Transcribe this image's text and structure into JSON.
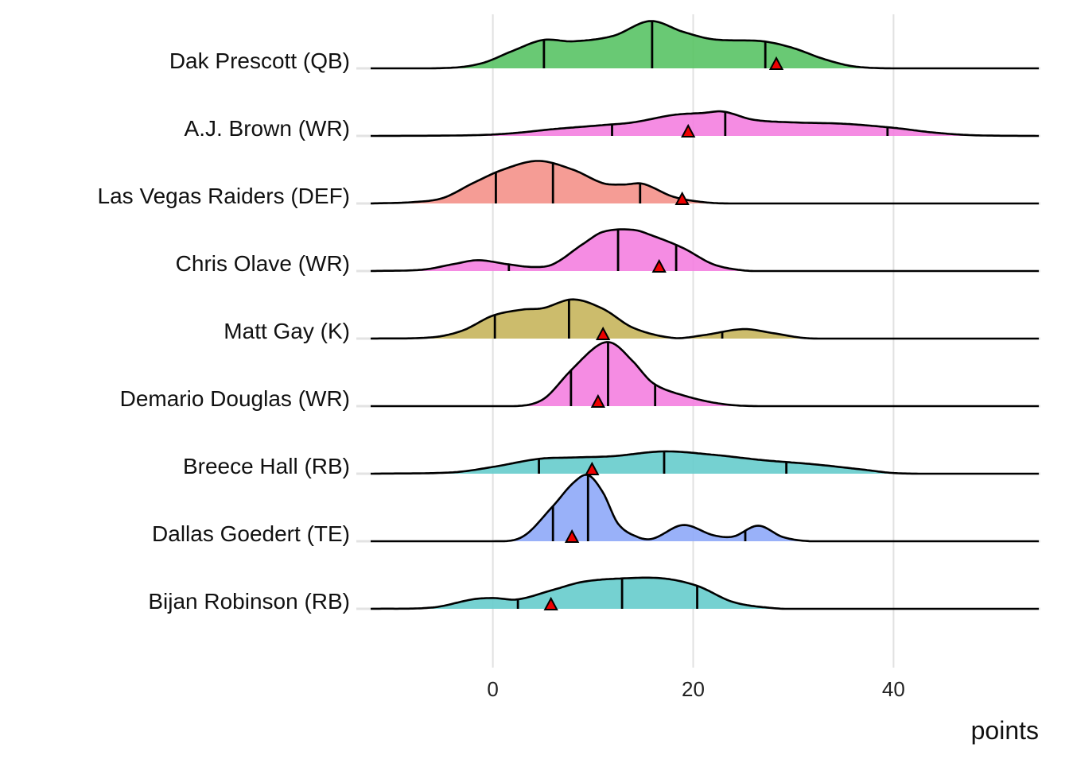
{
  "chart_data": {
    "type": "ridgeline",
    "title": "",
    "xlabel": "points",
    "ylabel": "",
    "xlim": [
      -12.2,
      54.5
    ],
    "x_ticks": [
      0,
      20,
      40
    ],
    "x_tick_labels": [
      "0",
      "20",
      "40"
    ],
    "grid": "vertical major lines",
    "legend": "none",
    "marker_shape": "triangle",
    "marker_color": "#ee0000",
    "quantile_lines": [
      0.25,
      0.5,
      0.75
    ],
    "series": [
      {
        "name": "Dak Prescott (QB)",
        "color": "#59c365",
        "quantiles": [
          5.1,
          15.9,
          27.2
        ],
        "marker": 28.3,
        "density": [
          [
            -12.2,
            0
          ],
          [
            -4,
            0.01
          ],
          [
            -1,
            0.08
          ],
          [
            2,
            0.26
          ],
          [
            5,
            0.42
          ],
          [
            8,
            0.4
          ],
          [
            12,
            0.48
          ],
          [
            15.7,
            0.7
          ],
          [
            19,
            0.54
          ],
          [
            22,
            0.43
          ],
          [
            27,
            0.4
          ],
          [
            30,
            0.3
          ],
          [
            33,
            0.14
          ],
          [
            36,
            0.03
          ],
          [
            40,
            0
          ],
          [
            54.5,
            0
          ]
        ]
      },
      {
        "name": "A.J. Brown (WR)",
        "color": "#f47fe0",
        "quantiles": [
          11.9,
          23.2,
          39.4
        ],
        "marker": 19.5,
        "density": [
          [
            -12.2,
            0
          ],
          [
            -2,
            0.01
          ],
          [
            2,
            0.04
          ],
          [
            6,
            0.1
          ],
          [
            11,
            0.16
          ],
          [
            14,
            0.2
          ],
          [
            18,
            0.31
          ],
          [
            21,
            0.34
          ],
          [
            23,
            0.36
          ],
          [
            26,
            0.24
          ],
          [
            30,
            0.2
          ],
          [
            35,
            0.18
          ],
          [
            40,
            0.12
          ],
          [
            44,
            0.05
          ],
          [
            48,
            0.01
          ],
          [
            54.5,
            0
          ]
        ]
      },
      {
        "name": "Las Vegas Raiders (DEF)",
        "color": "#f4918a",
        "quantiles": [
          0.3,
          6.0,
          14.7
        ],
        "marker": 18.9,
        "density": [
          [
            -12.2,
            0
          ],
          [
            -8,
            0.02
          ],
          [
            -5,
            0.08
          ],
          [
            -2,
            0.3
          ],
          [
            1,
            0.5
          ],
          [
            4.5,
            0.63
          ],
          [
            8,
            0.5
          ],
          [
            11,
            0.3
          ],
          [
            13,
            0.28
          ],
          [
            15,
            0.29
          ],
          [
            18,
            0.1
          ],
          [
            21,
            0.02
          ],
          [
            24,
            0
          ],
          [
            54.5,
            0
          ]
        ]
      },
      {
        "name": "Chris Olave (WR)",
        "color": "#f47fe0",
        "quantiles": [
          1.6,
          12.5,
          18.3
        ],
        "marker": 16.6,
        "density": [
          [
            -12.2,
            0
          ],
          [
            -7,
            0.02
          ],
          [
            -4,
            0.1
          ],
          [
            -1.5,
            0.16
          ],
          [
            1.5,
            0.1
          ],
          [
            4,
            0.06
          ],
          [
            6,
            0.1
          ],
          [
            9,
            0.4
          ],
          [
            11,
            0.58
          ],
          [
            14,
            0.61
          ],
          [
            16,
            0.52
          ],
          [
            19,
            0.34
          ],
          [
            22,
            0.1
          ],
          [
            25,
            0.01
          ],
          [
            28,
            0
          ],
          [
            54.5,
            0
          ]
        ]
      },
      {
        "name": "Matt Gay (K)",
        "color": "#c7b55c",
        "quantiles": [
          0.2,
          7.6,
          22.9
        ],
        "marker": 11.0,
        "density": [
          [
            -12.2,
            0
          ],
          [
            -6,
            0.02
          ],
          [
            -3,
            0.12
          ],
          [
            0,
            0.34
          ],
          [
            3,
            0.43
          ],
          [
            5,
            0.45
          ],
          [
            8,
            0.58
          ],
          [
            11,
            0.44
          ],
          [
            14,
            0.16
          ],
          [
            18,
            0.01
          ],
          [
            21,
            0.05
          ],
          [
            25,
            0.14
          ],
          [
            28,
            0.08
          ],
          [
            31,
            0.01
          ],
          [
            34,
            0
          ],
          [
            54.5,
            0
          ]
        ]
      },
      {
        "name": "Demario Douglas (WR)",
        "color": "#f47fe0",
        "quantiles": [
          7.8,
          11.5,
          16.2
        ],
        "marker": 10.5,
        "density": [
          [
            -12.2,
            0
          ],
          [
            2,
            0
          ],
          [
            5,
            0.1
          ],
          [
            7.8,
            0.53
          ],
          [
            10.5,
            0.9
          ],
          [
            12,
            0.93
          ],
          [
            14,
            0.66
          ],
          [
            16,
            0.34
          ],
          [
            19,
            0.16
          ],
          [
            23,
            0.03
          ],
          [
            27,
            0
          ],
          [
            54.5,
            0
          ]
        ]
      },
      {
        "name": "Breece Hall (RB)",
        "color": "#66cccc",
        "quantiles": [
          4.6,
          17.1,
          29.3
        ],
        "marker": 9.9,
        "density": [
          [
            -12.2,
            0
          ],
          [
            -4,
            0.02
          ],
          [
            0,
            0.1
          ],
          [
            4.6,
            0.22
          ],
          [
            8,
            0.24
          ],
          [
            12,
            0.26
          ],
          [
            17.1,
            0.33
          ],
          [
            22,
            0.28
          ],
          [
            27,
            0.2
          ],
          [
            32,
            0.14
          ],
          [
            37,
            0.06
          ],
          [
            40,
            0.01
          ],
          [
            44,
            0
          ],
          [
            54.5,
            0
          ]
        ]
      },
      {
        "name": "Dallas Goedert (TE)",
        "color": "#8ea8f8",
        "quantiles": [
          6.0,
          9.5,
          25.2
        ],
        "marker": 7.9,
        "density": [
          [
            -12.2,
            0
          ],
          [
            0,
            0
          ],
          [
            3,
            0.07
          ],
          [
            6,
            0.52
          ],
          [
            8,
            0.86
          ],
          [
            9.5,
            0.98
          ],
          [
            11,
            0.72
          ],
          [
            12.5,
            0.26
          ],
          [
            14.5,
            0.06
          ],
          [
            16,
            0.04
          ],
          [
            19,
            0.24
          ],
          [
            22,
            0.09
          ],
          [
            24,
            0.07
          ],
          [
            26.5,
            0.23
          ],
          [
            29,
            0.06
          ],
          [
            32,
            0
          ],
          [
            54.5,
            0
          ]
        ]
      },
      {
        "name": "Bijan Robinson (RB)",
        "color": "#66cccc",
        "quantiles": [
          2.5,
          12.9,
          20.4
        ],
        "marker": 5.8,
        "density": [
          [
            -12.2,
            0
          ],
          [
            -6,
            0.02
          ],
          [
            -2,
            0.14
          ],
          [
            0,
            0.16
          ],
          [
            2.5,
            0.14
          ],
          [
            6,
            0.28
          ],
          [
            9,
            0.4
          ],
          [
            12.9,
            0.45
          ],
          [
            17,
            0.45
          ],
          [
            20.4,
            0.34
          ],
          [
            24,
            0.1
          ],
          [
            28,
            0.01
          ],
          [
            31,
            0
          ],
          [
            54.5,
            0
          ]
        ]
      }
    ]
  }
}
